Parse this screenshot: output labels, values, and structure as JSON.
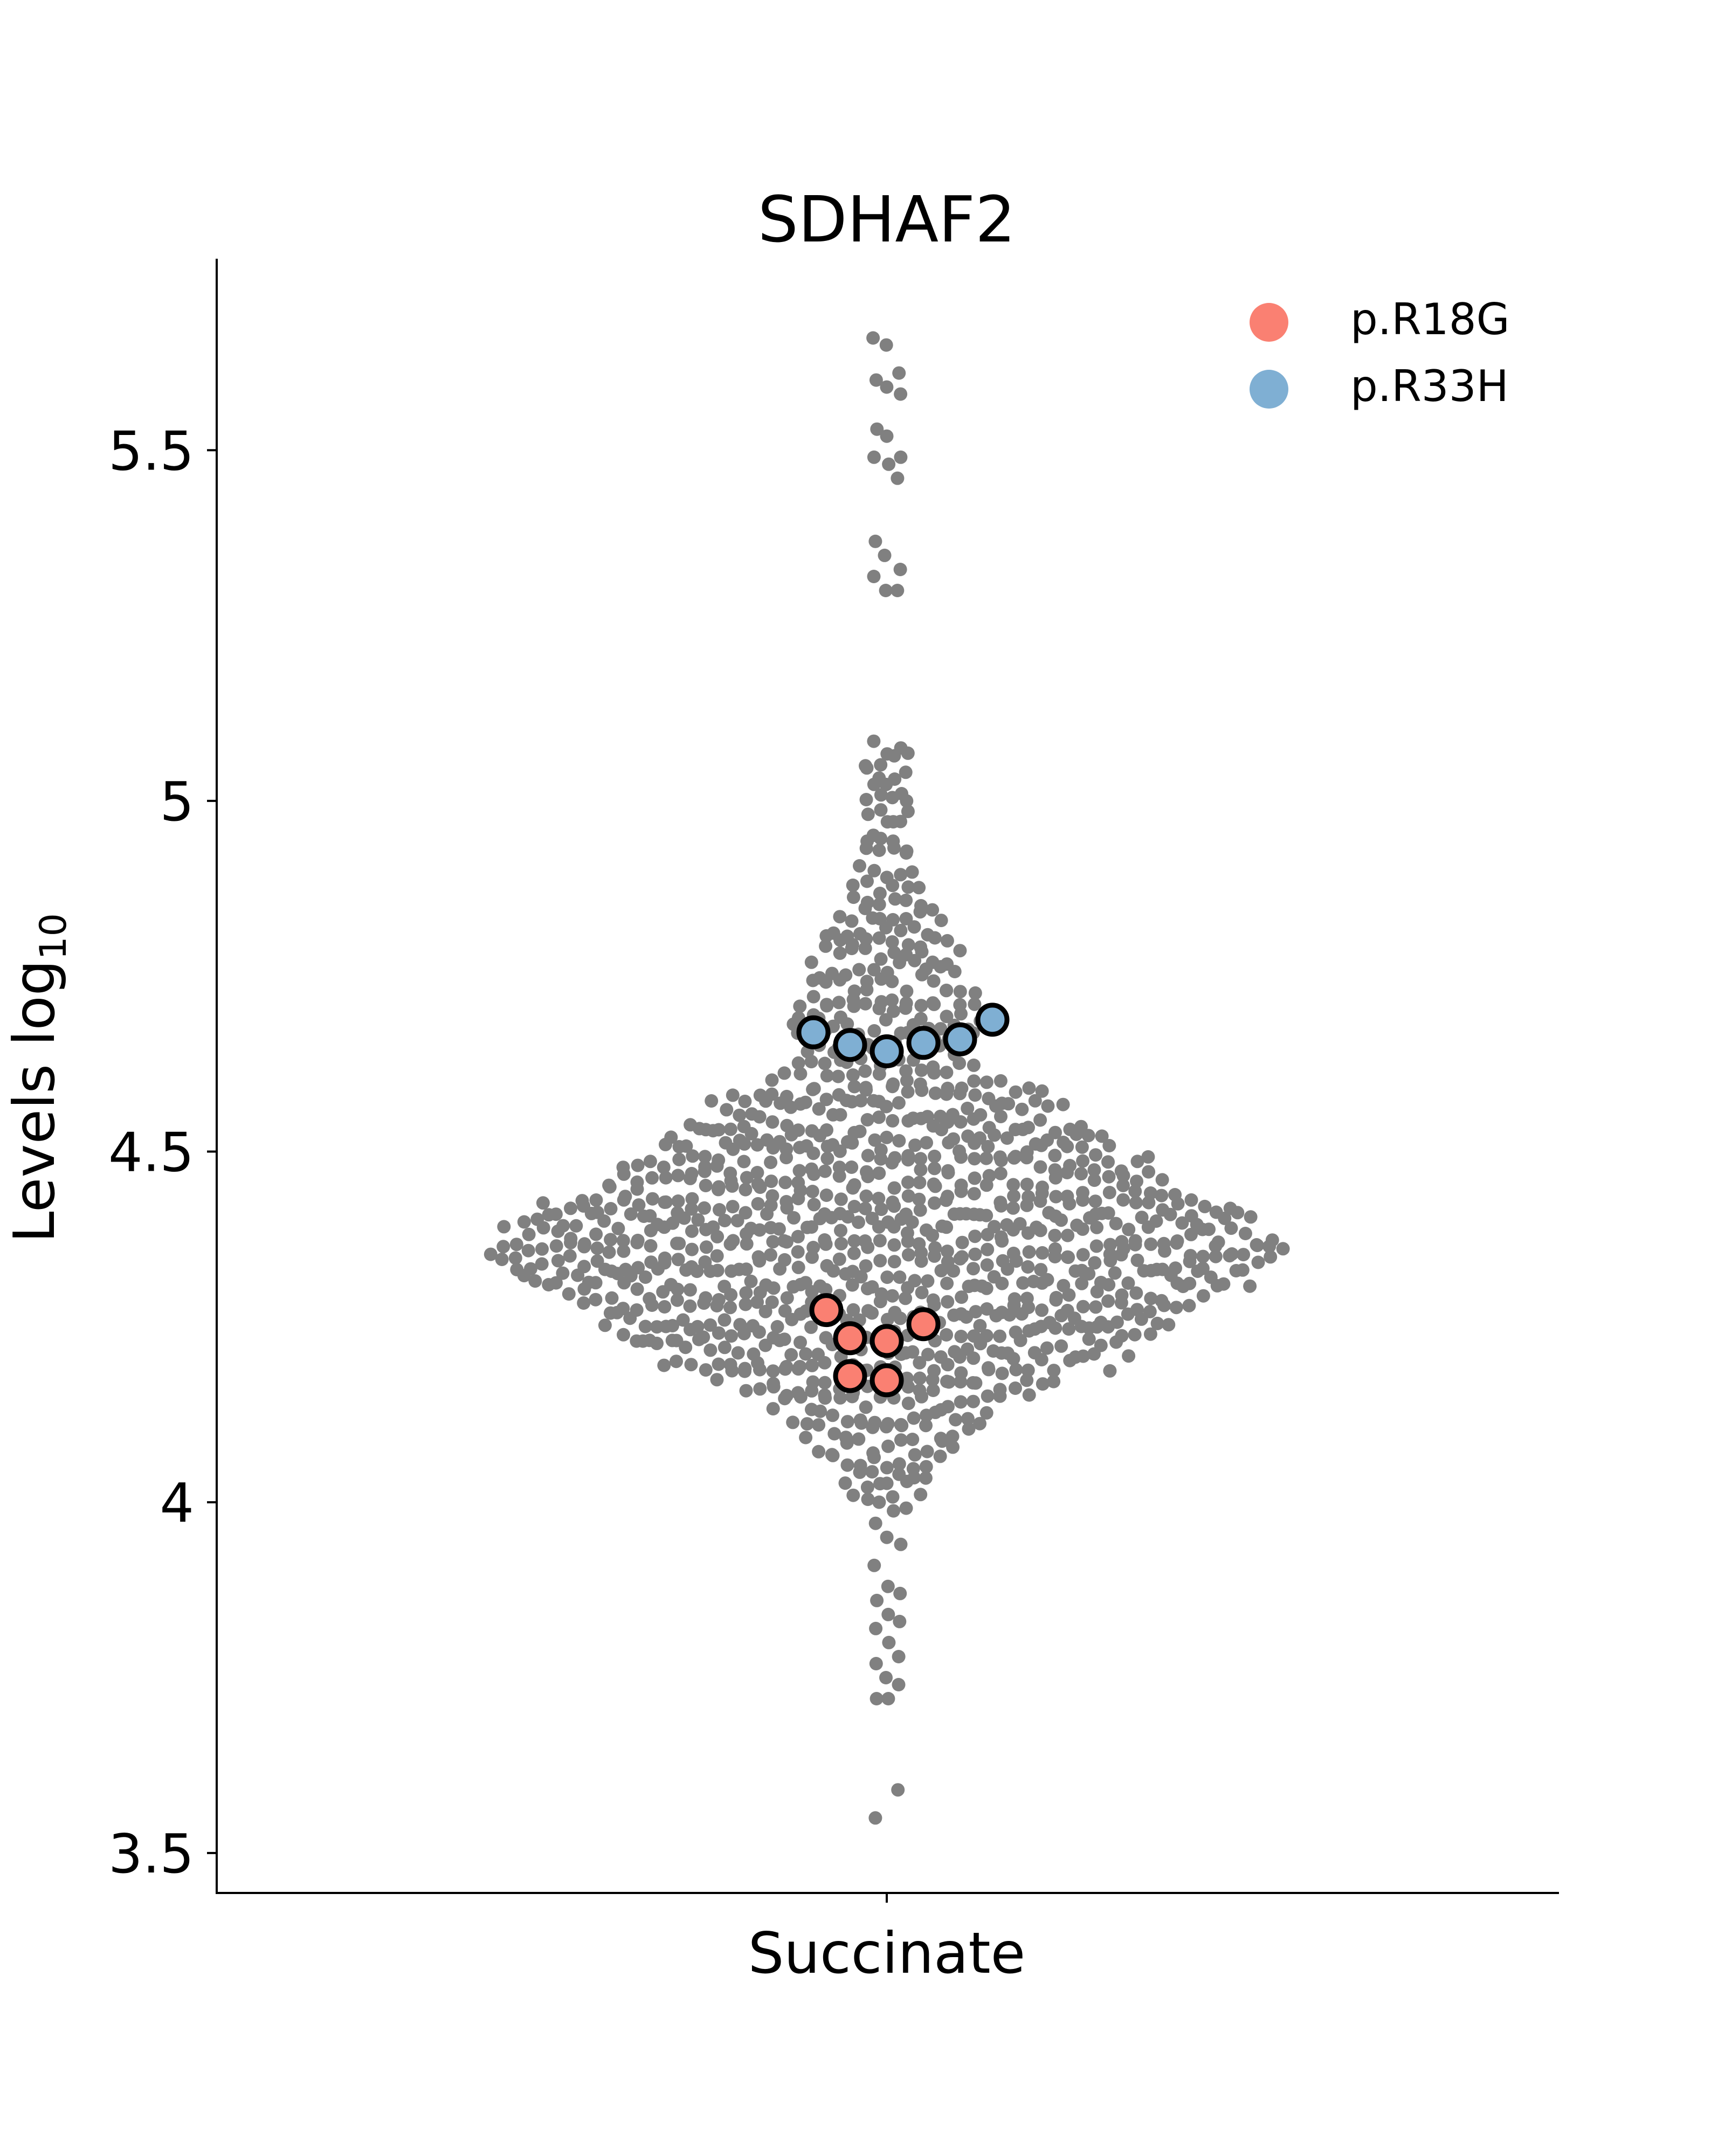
{
  "chart_data": {
    "type": "scatter",
    "subtype": "swarm",
    "title": "SDHAF2",
    "xlabel": "Succinate",
    "ylabel_main": "Levels log",
    "ylabel_sub": "10",
    "categories": [
      "Succinate"
    ],
    "ylim": [
      3.443,
      5.773
    ],
    "yticks": [
      3.5,
      4.0,
      4.5,
      5.0,
      5.5
    ],
    "ytick_labels": [
      "3.5",
      "4",
      "4.5",
      "5",
      "5.5"
    ],
    "grid": false,
    "legend_position": "top-right",
    "background_color": "#808080",
    "background_distribution": {
      "description_points": "approximate reconstruction of gray swarm (population values)",
      "tail_values_high": [
        5.66,
        5.65,
        5.61,
        5.6,
        5.59,
        5.58,
        5.53,
        5.52,
        5.49,
        5.49,
        5.48,
        5.46,
        5.37,
        5.35,
        5.33,
        5.32,
        5.3,
        5.3
      ],
      "tail_values_low": [
        3.97,
        3.95,
        3.94,
        3.91,
        3.88,
        3.87,
        3.86,
        3.84,
        3.83,
        3.82,
        3.8,
        3.78,
        3.77,
        3.75,
        3.74,
        3.72,
        3.72,
        3.59,
        3.55
      ],
      "core_levels": [
        [
          5.08,
          3
        ],
        [
          5.06,
          4
        ],
        [
          5.04,
          4
        ],
        [
          5.02,
          3
        ],
        [
          5.0,
          4
        ],
        [
          4.98,
          4
        ],
        [
          4.96,
          3
        ],
        [
          4.94,
          4
        ],
        [
          4.92,
          4
        ],
        [
          4.9,
          5
        ],
        [
          4.88,
          6
        ],
        [
          4.86,
          6
        ],
        [
          4.84,
          8
        ],
        [
          4.82,
          9
        ],
        [
          4.8,
          10
        ],
        [
          4.78,
          12
        ],
        [
          4.76,
          11
        ],
        [
          4.74,
          12
        ],
        [
          4.72,
          14
        ],
        [
          4.7,
          14
        ],
        [
          4.68,
          15
        ],
        [
          4.66,
          14
        ],
        [
          4.64,
          13
        ],
        [
          4.62,
          14
        ],
        [
          4.6,
          18
        ],
        [
          4.58,
          24
        ],
        [
          4.56,
          27
        ],
        [
          4.54,
          30
        ],
        [
          4.52,
          33
        ],
        [
          4.5,
          34
        ],
        [
          4.48,
          40
        ],
        [
          4.46,
          42
        ],
        [
          4.44,
          46
        ],
        [
          4.42,
          52
        ],
        [
          4.4,
          55
        ],
        [
          4.38,
          58
        ],
        [
          4.36,
          60
        ],
        [
          4.34,
          58
        ],
        [
          4.32,
          55
        ],
        [
          4.3,
          50
        ],
        [
          4.28,
          46
        ],
        [
          4.26,
          43
        ],
        [
          4.24,
          40
        ],
        [
          4.22,
          37
        ],
        [
          4.2,
          34
        ],
        [
          4.18,
          26
        ],
        [
          4.16,
          22
        ],
        [
          4.14,
          18
        ],
        [
          4.12,
          15
        ],
        [
          4.1,
          13
        ],
        [
          4.08,
          11
        ],
        [
          4.06,
          9
        ],
        [
          4.04,
          7
        ],
        [
          4.02,
          6
        ],
        [
          4.0,
          4
        ]
      ]
    },
    "series": [
      {
        "name": "p.R18G",
        "color": "#FA8072",
        "values": [
          4.274,
          4.254,
          4.234,
          4.23,
          4.18,
          4.174
        ]
      },
      {
        "name": "p.R33H",
        "color": "#7FAFD3",
        "values": [
          4.688,
          4.67,
          4.66,
          4.655,
          4.652,
          4.643
        ]
      }
    ]
  }
}
